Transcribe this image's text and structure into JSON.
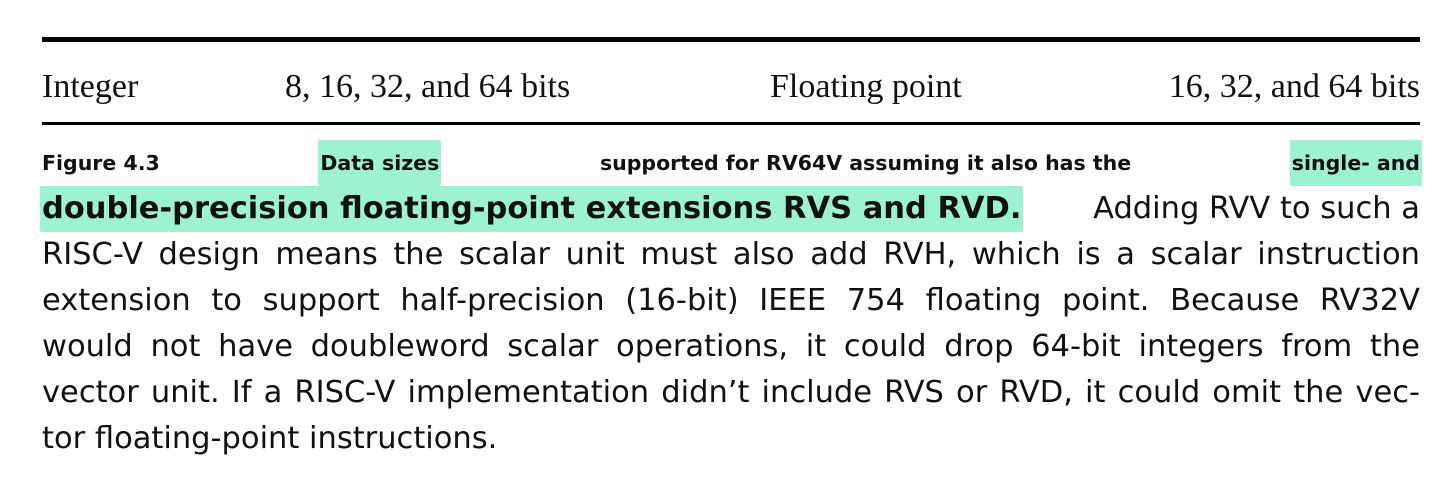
{
  "table": {
    "integer_label": "Integer",
    "integer_sizes": "8, 16, 32, and 64 bits",
    "float_label": "Floating point",
    "float_sizes": "16, 32, and 64 bits"
  },
  "caption": {
    "figure_label": "Figure 4.3",
    "highlight_1": "Data sizes",
    "bold_1": "supported for RV64V assuming it also has the",
    "highlight_2a": "single- and",
    "highlight_2b": "double-precision floating-point extensions RVS and RVD.",
    "line2_rest": "Adding RVV to such a",
    "line3": "RISC-V design means the scalar unit must also add RVH, which is a scalar instruction",
    "line4": "extension to support half-precision (16-bit) IEEE 754 floating point. Because RV32V",
    "line5": "would not have doubleword scalar operations, it could drop 64-bit integers from the",
    "line6": "vector unit. If a RISC-V implementation didn’t include RVS or RVD, it could omit the vec-",
    "line7": "tor floating-point instructions."
  },
  "colors": {
    "highlight": "#9df2cf",
    "rule": "#000000",
    "text": "#111111"
  }
}
